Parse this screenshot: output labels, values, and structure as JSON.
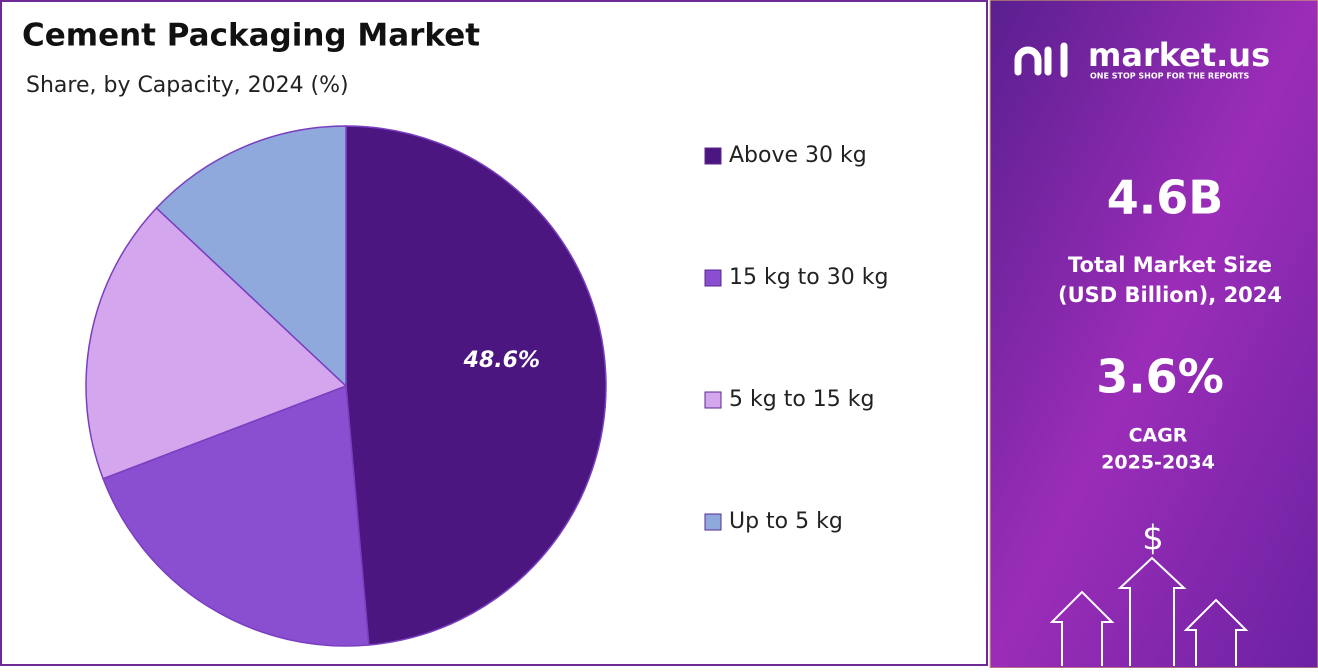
{
  "chart_data": {
    "type": "pie",
    "title": "Cement Packaging Market",
    "subtitle": "Share, by Capacity, 2024 (%)",
    "categories": [
      "Above 30 kg",
      "15 kg to 30 kg",
      "5 kg to 15 kg",
      "Up to 5 kg"
    ],
    "values": [
      48.6,
      20.6,
      17.8,
      13.0
    ],
    "value_labels": [
      "48.6%",
      null,
      null,
      null
    ],
    "colors": [
      "#4b1680",
      "#8a4fd1",
      "#d3a6ee",
      "#8fa9dd"
    ],
    "legend": "right"
  },
  "panel": {
    "brand": "market.us",
    "tagline": "ONE STOP SHOP FOR THE REPORTS",
    "market_size": "4.6B",
    "market_size_label": [
      "Total Market Size",
      "(USD Billion), 2024"
    ],
    "cagr": "3.6%",
    "cagr_label": "CAGR",
    "cagr_period": "2025-2034",
    "icon": "$"
  }
}
